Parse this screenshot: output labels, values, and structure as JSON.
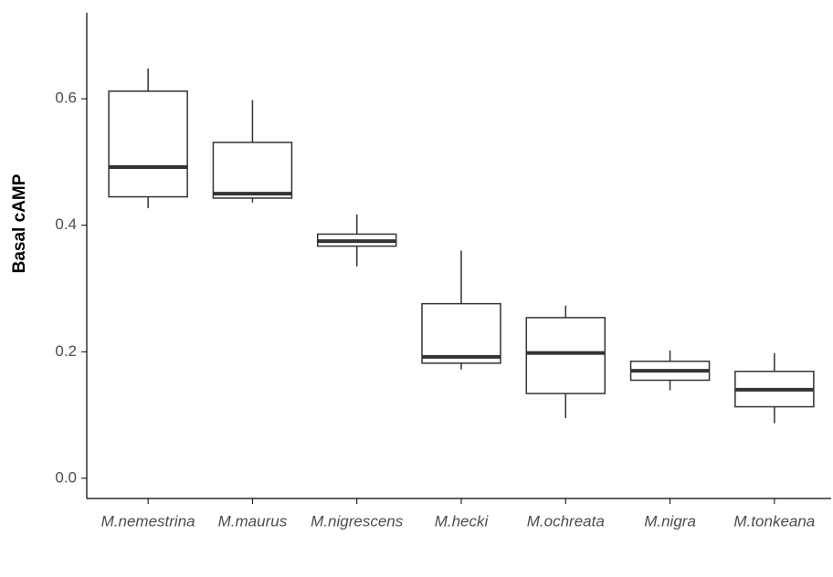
{
  "chart_data": {
    "type": "box",
    "y_label": "Basal cAMP",
    "categories": [
      "M.nemestrina",
      "M.maurus",
      "M.nigrescens",
      "M.hecki",
      "M.ochreata",
      "M.nigra",
      "M.tonkeana"
    ],
    "whisker_low": [
      0.427,
      0.436,
      0.335,
      0.172,
      0.095,
      0.139,
      0.087
    ],
    "q1": [
      0.445,
      0.443,
      0.367,
      0.182,
      0.134,
      0.155,
      0.113
    ],
    "median": [
      0.492,
      0.45,
      0.375,
      0.192,
      0.198,
      0.17,
      0.14
    ],
    "q3": [
      0.612,
      0.531,
      0.386,
      0.276,
      0.254,
      0.185,
      0.169
    ],
    "whisker_high": [
      0.648,
      0.598,
      0.417,
      0.36,
      0.273,
      0.202,
      0.198
    ],
    "ylim": [
      -0.032,
      0.736
    ],
    "yticks": [
      {
        "value": 0,
        "label": "0.0"
      },
      {
        "value": 0.2,
        "label": "0.2"
      },
      {
        "value": 0.4,
        "label": "0.4"
      },
      {
        "value": 0.6,
        "label": "0.6"
      }
    ],
    "color": "#333333"
  }
}
